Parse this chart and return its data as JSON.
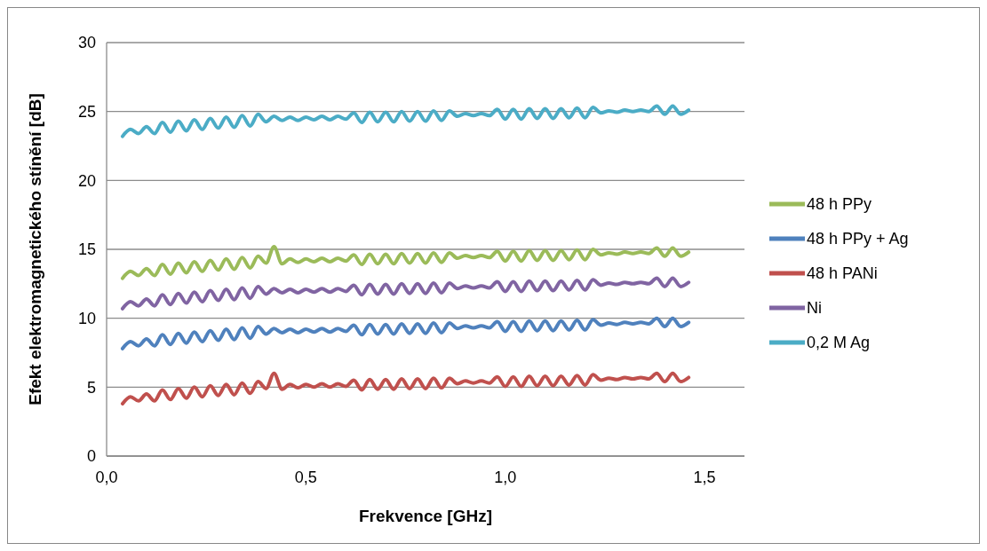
{
  "chart_data": {
    "type": "line",
    "xlabel": "Frekvence [GHz]",
    "ylabel": "Efekt elektromagnetického stínění  [dB]",
    "x": [
      0.04,
      0.06,
      0.08,
      0.1,
      0.12,
      0.14,
      0.16,
      0.18,
      0.2,
      0.22,
      0.24,
      0.26,
      0.28,
      0.3,
      0.32,
      0.34,
      0.36,
      0.38,
      0.4,
      0.42,
      0.44,
      0.46,
      0.48,
      0.5,
      0.52,
      0.54,
      0.56,
      0.58,
      0.6,
      0.62,
      0.64,
      0.66,
      0.68,
      0.7,
      0.72,
      0.74,
      0.76,
      0.78,
      0.8,
      0.82,
      0.84,
      0.86,
      0.88,
      0.9,
      0.92,
      0.94,
      0.96,
      0.98,
      1.0,
      1.02,
      1.04,
      1.06,
      1.08,
      1.1,
      1.12,
      1.14,
      1.16,
      1.18,
      1.2,
      1.22,
      1.24,
      1.26,
      1.28,
      1.3,
      1.32,
      1.34,
      1.36,
      1.38,
      1.4,
      1.42,
      1.44,
      1.46
    ],
    "series": [
      {
        "name": "48 h PPy",
        "color": "#9bbb59",
        "values": [
          12.9,
          13.4,
          13.1,
          13.6,
          13.1,
          13.9,
          13.2,
          14.0,
          13.3,
          14.1,
          13.4,
          14.2,
          13.5,
          14.3,
          13.55,
          14.4,
          13.65,
          14.5,
          14.0,
          15.2,
          13.95,
          14.3,
          14.05,
          14.3,
          14.1,
          14.35,
          14.1,
          14.35,
          14.15,
          14.6,
          13.9,
          14.65,
          13.95,
          14.65,
          13.95,
          14.7,
          14.0,
          14.7,
          14.0,
          14.75,
          14.05,
          14.75,
          14.35,
          14.55,
          14.4,
          14.55,
          14.4,
          14.85,
          14.15,
          14.85,
          14.15,
          14.9,
          14.2,
          14.9,
          14.2,
          14.9,
          14.25,
          14.95,
          14.25,
          15.0,
          14.6,
          14.75,
          14.65,
          14.8,
          14.7,
          14.8,
          14.7,
          15.1,
          14.5,
          15.1,
          14.5,
          14.8
        ]
      },
      {
        "name": "48 h PPy + Ag",
        "color": "#4f81bd",
        "values": [
          7.8,
          8.3,
          8.0,
          8.5,
          8.0,
          8.8,
          8.1,
          8.9,
          8.2,
          9.0,
          8.3,
          9.1,
          8.4,
          9.2,
          8.45,
          9.3,
          8.55,
          9.4,
          8.85,
          9.25,
          8.95,
          9.2,
          8.95,
          9.2,
          9.0,
          9.25,
          9.0,
          9.25,
          9.05,
          9.5,
          8.8,
          9.55,
          8.85,
          9.55,
          8.85,
          9.6,
          8.9,
          9.6,
          8.9,
          9.65,
          8.95,
          9.65,
          9.25,
          9.45,
          9.3,
          9.45,
          9.3,
          9.75,
          9.05,
          9.75,
          9.05,
          9.8,
          9.1,
          9.8,
          9.1,
          9.8,
          9.15,
          9.85,
          9.15,
          9.9,
          9.5,
          9.65,
          9.55,
          9.7,
          9.6,
          9.7,
          9.6,
          10.0,
          9.4,
          10.0,
          9.4,
          9.7
        ]
      },
      {
        "name": "48 h PANi",
        "color": "#c0504d",
        "values": [
          3.8,
          4.3,
          4.0,
          4.5,
          4.0,
          4.8,
          4.1,
          4.9,
          4.2,
          5.0,
          4.3,
          5.1,
          4.4,
          5.2,
          4.45,
          5.3,
          4.55,
          5.4,
          4.9,
          6.0,
          4.85,
          5.2,
          4.95,
          5.2,
          5.0,
          5.25,
          5.0,
          5.25,
          5.05,
          5.5,
          4.8,
          5.55,
          4.85,
          5.55,
          4.85,
          5.6,
          4.9,
          5.6,
          4.9,
          5.65,
          4.95,
          5.65,
          5.25,
          5.45,
          5.3,
          5.45,
          5.3,
          5.75,
          5.05,
          5.75,
          5.05,
          5.8,
          5.1,
          5.8,
          5.1,
          5.8,
          5.15,
          5.85,
          5.15,
          5.9,
          5.5,
          5.65,
          5.55,
          5.7,
          5.6,
          5.7,
          5.6,
          6.0,
          5.4,
          6.0,
          5.4,
          5.7
        ]
      },
      {
        "name": "Ni",
        "color": "#8064a2",
        "values": [
          10.7,
          11.2,
          10.9,
          11.4,
          10.9,
          11.7,
          11.0,
          11.8,
          11.1,
          11.9,
          11.2,
          12.0,
          11.3,
          12.1,
          11.35,
          12.2,
          11.45,
          12.3,
          11.75,
          12.15,
          11.85,
          12.1,
          11.85,
          12.1,
          11.9,
          12.15,
          11.9,
          12.15,
          11.95,
          12.4,
          11.7,
          12.45,
          11.75,
          12.45,
          11.75,
          12.5,
          11.8,
          12.5,
          11.8,
          12.55,
          11.85,
          12.55,
          12.15,
          12.35,
          12.2,
          12.35,
          12.2,
          12.65,
          11.95,
          12.65,
          11.95,
          12.7,
          12.0,
          12.7,
          12.0,
          12.7,
          12.05,
          12.75,
          12.05,
          12.8,
          12.4,
          12.55,
          12.45,
          12.6,
          12.5,
          12.6,
          12.5,
          12.9,
          12.3,
          12.9,
          12.3,
          12.6
        ]
      },
      {
        "name": "0,2 M Ag",
        "color": "#4bacc6",
        "values": [
          23.2,
          23.7,
          23.4,
          23.9,
          23.4,
          24.2,
          23.5,
          24.3,
          23.6,
          24.4,
          23.7,
          24.5,
          23.8,
          24.6,
          23.85,
          24.7,
          23.95,
          24.8,
          24.25,
          24.65,
          24.35,
          24.6,
          24.35,
          24.6,
          24.4,
          24.65,
          24.4,
          24.65,
          24.45,
          24.9,
          24.2,
          24.95,
          24.25,
          24.95,
          24.25,
          25.0,
          24.3,
          25.0,
          24.3,
          25.05,
          24.35,
          25.05,
          24.65,
          24.85,
          24.7,
          24.85,
          24.7,
          25.15,
          24.45,
          25.15,
          24.45,
          25.2,
          24.5,
          25.2,
          24.5,
          25.2,
          24.55,
          25.25,
          24.55,
          25.3,
          24.9,
          25.05,
          24.95,
          25.1,
          25.0,
          25.1,
          25.0,
          25.4,
          24.8,
          25.4,
          24.8,
          25.1
        ]
      }
    ],
    "xlim": [
      0,
      1.6
    ],
    "xticks": [
      {
        "value": 0,
        "label": "0,0"
      },
      {
        "value": 0.5,
        "label": "0,5"
      },
      {
        "value": 1,
        "label": "1,0"
      },
      {
        "value": 1.5,
        "label": "1,5"
      }
    ],
    "ylim": [
      0,
      30
    ],
    "yticks": [
      0,
      5,
      10,
      15,
      20,
      25,
      30
    ],
    "grid": "y",
    "legend": "right",
    "marker": "none",
    "line_style": "solid"
  }
}
